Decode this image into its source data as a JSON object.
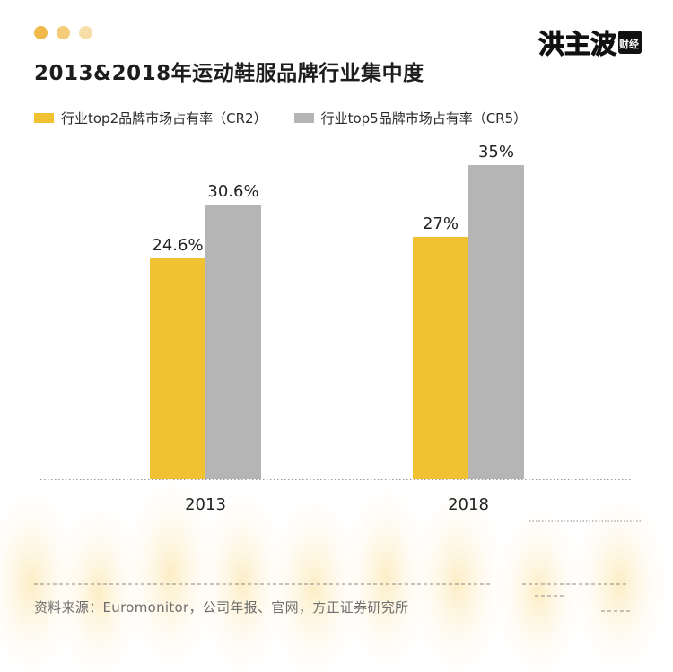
{
  "header": {
    "title": "2013&2018年运动鞋服品牌行业集中度",
    "logo_text": "洪主波",
    "logo_sub": "财经",
    "dot_colors": [
      "#F0B94A",
      "#F4CB79",
      "#F7DDA8"
    ]
  },
  "legend": [
    {
      "label": "行业top2品牌市场占有率（CR2）",
      "color": "#F0C232"
    },
    {
      "label": "行业top5品牌市场占有率（CR5）",
      "color": "#B5B5B5"
    }
  ],
  "chart_data": {
    "type": "bar",
    "categories": [
      "2013",
      "2018"
    ],
    "series": [
      {
        "name": "行业top2品牌市场占有率（CR2）",
        "values": [
          24.6,
          27
        ],
        "labels": [
          "24.6%",
          "27%"
        ],
        "color": "#F0C232"
      },
      {
        "name": "行业top5品牌市场占有率（CR5）",
        "values": [
          30.6,
          35
        ],
        "labels": [
          "30.6%",
          "35%"
        ],
        "color": "#B5B5B5"
      }
    ],
    "ylim": [
      0,
      35
    ],
    "grid": false,
    "legend_position": "top-left"
  },
  "footer": {
    "source": "资料来源：Euromonitor，公司年报、官网，方正证券研究所"
  }
}
